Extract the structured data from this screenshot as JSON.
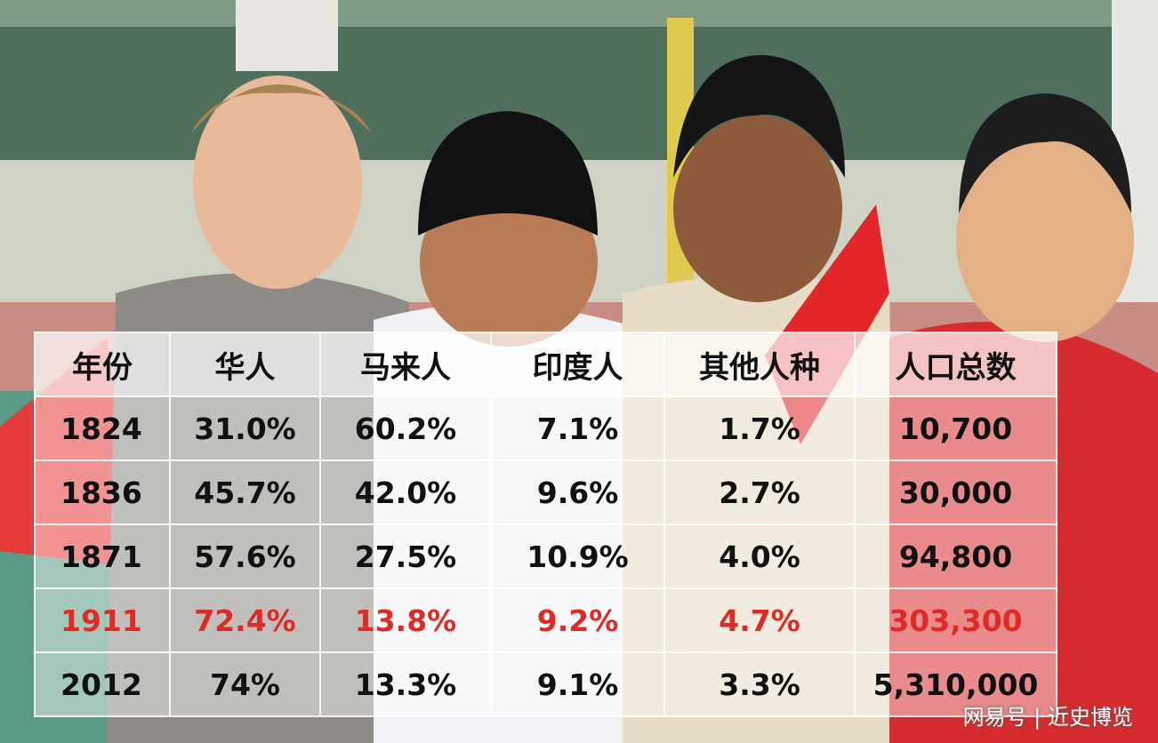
{
  "table": {
    "header": [
      "年份",
      "华人",
      "马来人",
      "印度人",
      "其他人种",
      "人口总数"
    ],
    "rows": [
      [
        "1824",
        "31.0%",
        "60.2%",
        "7.1%",
        "1.7%",
        "10,700"
      ],
      [
        "1836",
        "45.7%",
        "42.0%",
        "9.6%",
        "2.7%",
        "30,000"
      ],
      [
        "1871",
        "57.6%",
        "27.5%",
        "10.9%",
        "4.0%",
        "94,800"
      ],
      [
        "1911",
        "72.4%",
        "13.8%",
        "9.2%",
        "4.7%",
        "303,300"
      ],
      [
        "2012",
        "74%",
        "13.3%",
        "9.1%",
        "3.3%",
        "5,310,000"
      ]
    ]
  },
  "watermark": "网易号 | 近史博览"
}
